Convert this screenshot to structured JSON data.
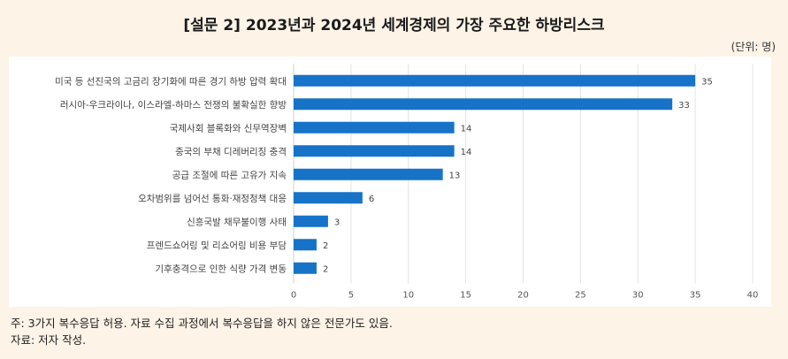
{
  "title": "[설문 2] 2023년과 2024년 세계경제의 가장 주요한 하방리스크",
  "unit_label": "(단위: 명)",
  "notes": {
    "note": "주: 3가지 복수응답 허용. 자료 수집 과정에서 복수응답을 하지 않은 전문가도 있음.",
    "source": "자료: 저자 작성."
  },
  "colors": {
    "bar": "#1673c8",
    "background": "#fdf3e7",
    "panel": "#ffffff"
  },
  "chart_data": {
    "type": "bar",
    "orientation": "horizontal",
    "categories": [
      "미국 등 선진국의 고금리 장기화에 따른 경기 하방 압력 확대",
      "러시아-우크라이나, 이스라엘-하마스 전쟁의 불확실한 향방",
      "국제사회 블록화와 신무역장벽",
      "중국의 부채 디레버리징 충격",
      "공급 조절에 따른 고유가 지속",
      "오차범위를 넘어선 통화·재정정책 대응",
      "신흥국발 채무불이행 사태",
      "프렌드쇼어링 및 리쇼어링 비용 부담",
      "기후충격으로 인한 식량 가격 변동"
    ],
    "values": [
      35,
      33,
      14,
      14,
      13,
      6,
      3,
      2,
      2
    ],
    "xlim": [
      0,
      40
    ],
    "xticks": [
      0,
      5,
      10,
      15,
      20,
      25,
      30,
      35,
      40
    ],
    "grid": true,
    "data_labels": true
  }
}
